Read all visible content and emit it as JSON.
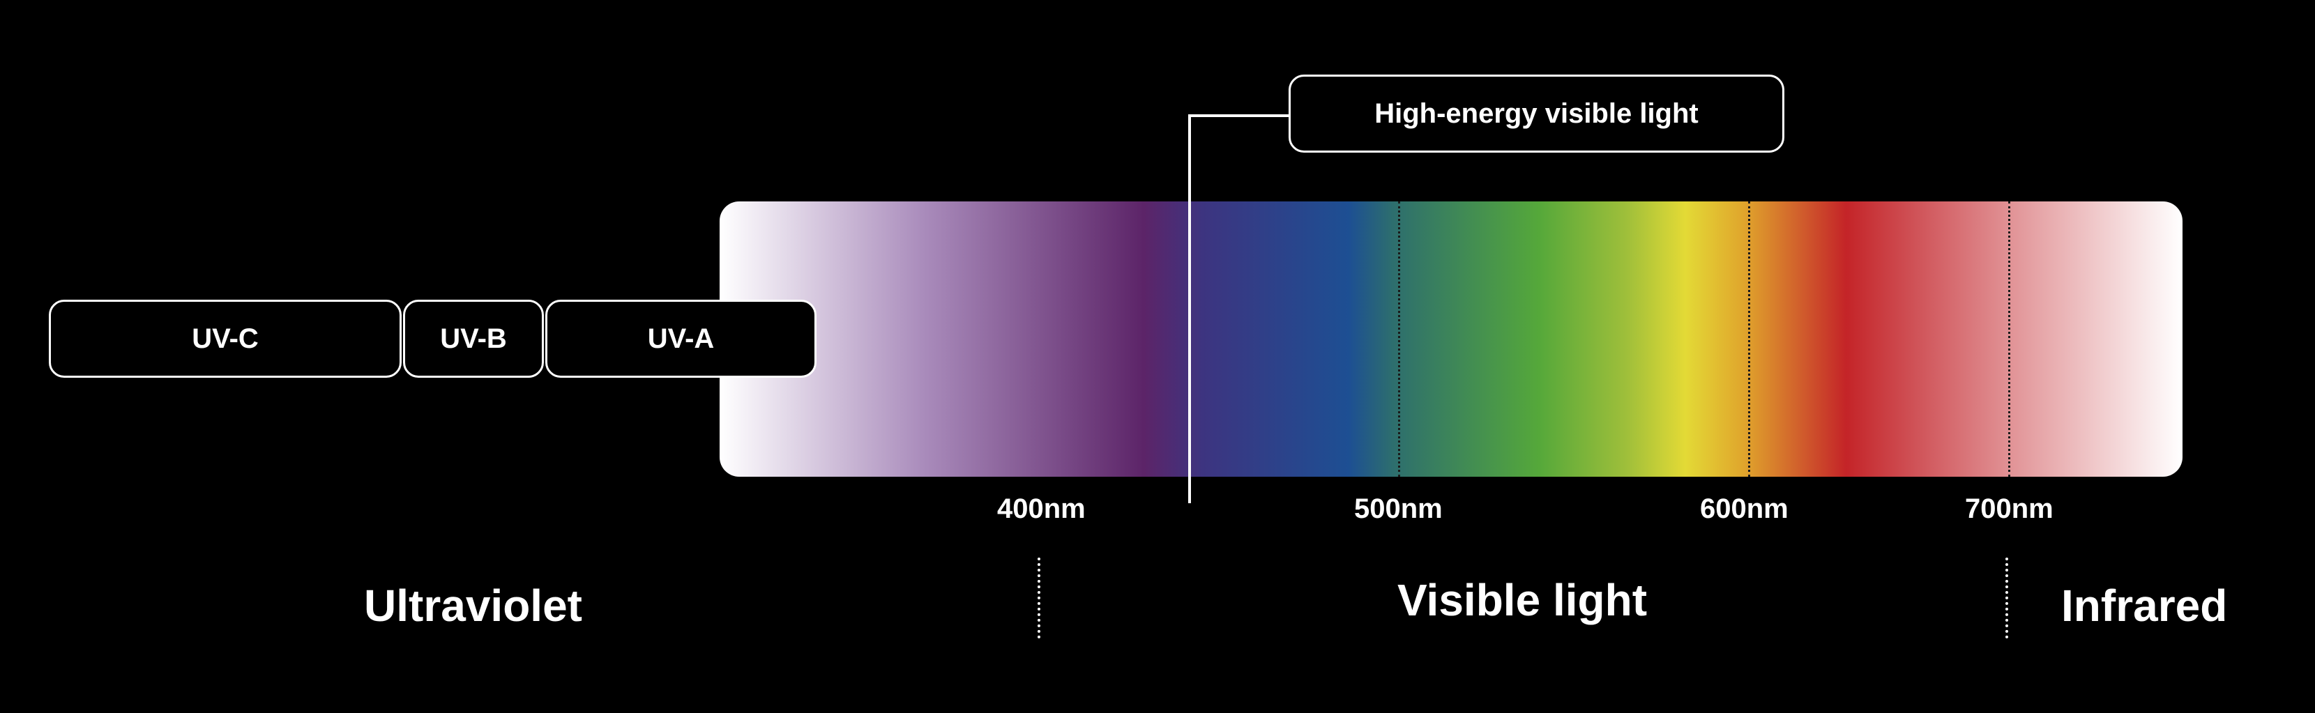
{
  "uv_bands": [
    {
      "label": "UV-C"
    },
    {
      "label": "UV-B"
    },
    {
      "label": "UV-A"
    }
  ],
  "callout": {
    "label": "High-energy visible light"
  },
  "wavelength_ticks": [
    "400nm",
    "500nm",
    "600nm",
    "700nm"
  ],
  "regions": {
    "ultraviolet": "Ultraviolet",
    "visible": "Visible light",
    "infrared": "Infrared"
  },
  "colors": {
    "background": "#000000",
    "foreground": "#ffffff",
    "violet": "#5c2468",
    "blue": "#1d4f93",
    "green": "#55a83a",
    "yellow": "#e3da36",
    "red": "#c42428"
  }
}
